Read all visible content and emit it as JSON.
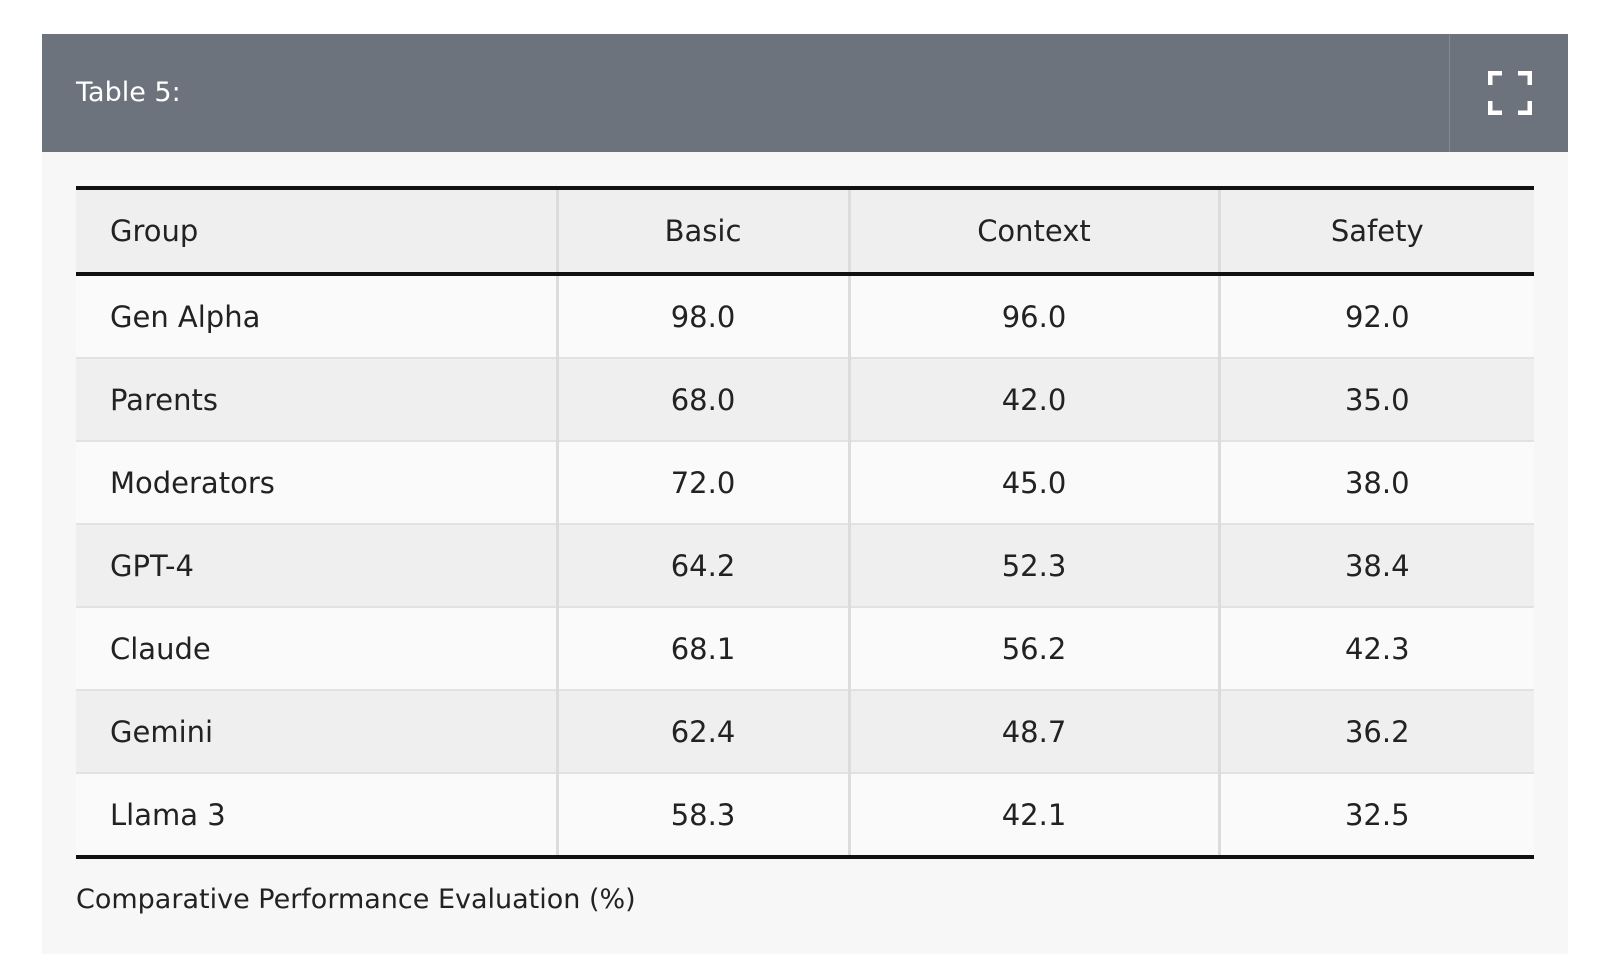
{
  "header": {
    "title": "Table 5:"
  },
  "table": {
    "columns": [
      "Group",
      "Basic",
      "Context",
      "Safety"
    ],
    "rows": [
      [
        "Gen Alpha",
        "98.0",
        "96.0",
        "92.0"
      ],
      [
        "Parents",
        "68.0",
        "42.0",
        "35.0"
      ],
      [
        "Moderators",
        "72.0",
        "45.0",
        "38.0"
      ],
      [
        "GPT-4",
        "64.2",
        "52.3",
        "38.4"
      ],
      [
        "Claude",
        "68.1",
        "56.2",
        "42.3"
      ],
      [
        "Gemini",
        "62.4",
        "48.7",
        "36.2"
      ],
      [
        "Llama 3",
        "58.3",
        "42.1",
        "32.5"
      ]
    ]
  },
  "caption": "Comparative Performance Evaluation (%)"
}
